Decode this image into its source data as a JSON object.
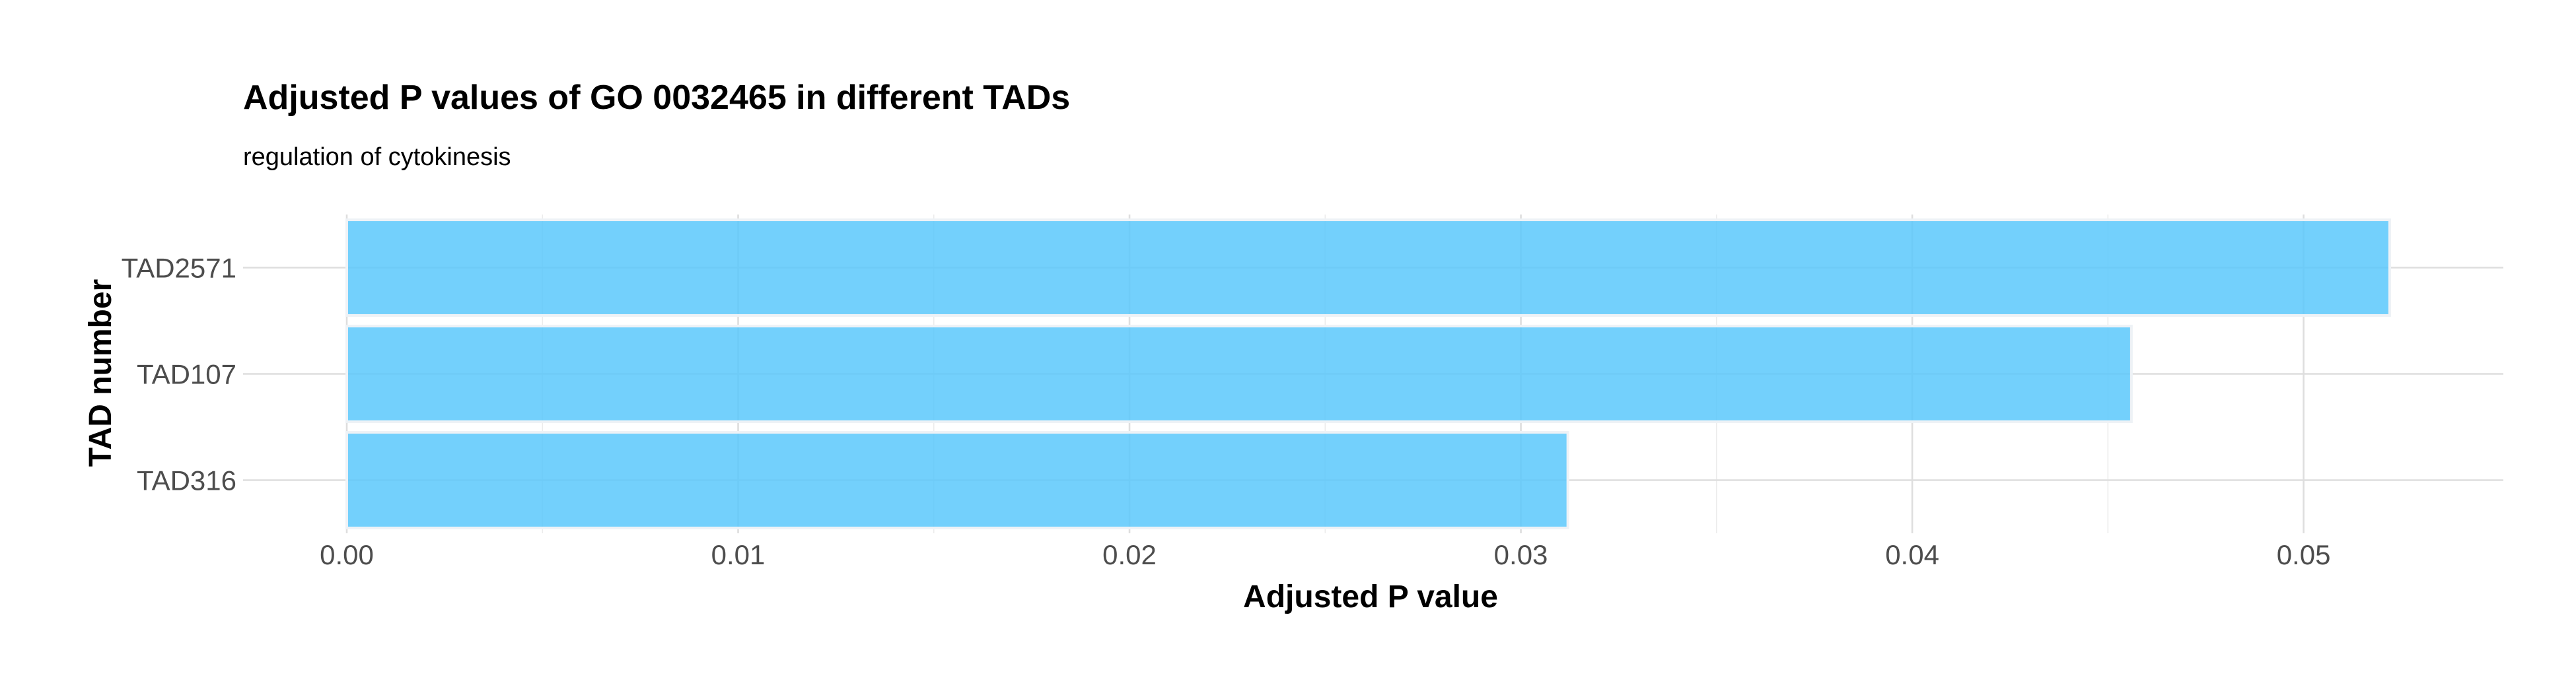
{
  "chart_data": {
    "type": "bar",
    "orientation": "horizontal",
    "title": "Adjusted P values of GO 0032465 in different TADs",
    "subtitle": "regulation of cytokinesis",
    "xlabel": "Adjusted P value",
    "ylabel": "TAD number",
    "categories": [
      "TAD2571",
      "TAD107",
      "TAD316"
    ],
    "values": [
      0.0522,
      0.0456,
      0.0312
    ],
    "xlim": [
      0,
      0.0548
    ],
    "x_ticks": [
      0.0,
      0.01,
      0.02,
      0.03,
      0.04,
      0.05
    ],
    "x_tick_labels": [
      "0.00",
      "0.01",
      "0.02",
      "0.03",
      "0.04",
      "0.05"
    ],
    "grid": true,
    "legend": "none",
    "bar_color": "#5bc8fb"
  }
}
